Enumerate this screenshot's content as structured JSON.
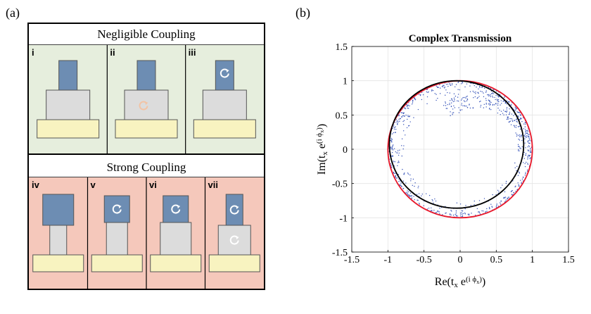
{
  "panel_a": {
    "label": "(a)",
    "top_section": {
      "title": "Negligible Coupling",
      "cells": [
        {
          "roman": "i",
          "pieces": [
            {
              "t": "top",
              "arrow": false
            },
            {
              "t": "mid",
              "arrow": false
            },
            {
              "t": "base"
            }
          ]
        },
        {
          "roman": "ii",
          "pieces": [
            {
              "t": "top",
              "arrow": false
            },
            {
              "t": "mid",
              "arrow": true
            },
            {
              "t": "base"
            }
          ]
        },
        {
          "roman": "iii",
          "pieces": [
            {
              "t": "top",
              "arrow": true
            },
            {
              "t": "mid",
              "arrow": false
            },
            {
              "t": "base"
            }
          ]
        }
      ]
    },
    "bottom_section": {
      "title": "Strong Coupling",
      "cells": [
        {
          "roman": "iv",
          "variant": "big-top-narrow",
          "top_arrow": false,
          "mid_arrow": false
        },
        {
          "roman": "v",
          "variant": "mid-top",
          "top_arrow": true,
          "mid_arrow": false
        },
        {
          "roman": "vi",
          "variant": "mid-top-wide",
          "top_arrow": true,
          "mid_arrow": false
        },
        {
          "roman": "vii",
          "variant": "small-top-wide",
          "top_arrow": true,
          "mid_arrow": true
        }
      ]
    },
    "colors": {
      "top_bg": "#e6eedd",
      "bottom_bg": "#f5c8bb",
      "block_top": "#6d8db3",
      "block_mid": "#dcdcdc",
      "block_base": "#f8f3c0",
      "arrow_top": "#ffffff",
      "arrow_mid": "#f3c3a4"
    }
  },
  "panel_b": {
    "label": "(b)",
    "chart_data": {
      "type": "scatter",
      "title": "Complex Transmission",
      "xlabel": "Re(t",
      "xlabel_sub": "x",
      "xlabel_mid": " e",
      "xlabel_sup": "(i ϕ",
      "xlabel_supsub": "x",
      "xlabel_end": ")",
      "ylabel": "Im(t",
      "xlim": [
        -1.5,
        1.5
      ],
      "ylim": [
        -1.5,
        1.5
      ],
      "xticks": [
        -1.5,
        -1,
        -0.5,
        0,
        0.5,
        1,
        1.5
      ],
      "yticks": [
        -1.5,
        -1,
        -0.5,
        0,
        0.5,
        1,
        1.5
      ],
      "xtick_labels": [
        "-1.5",
        "-1",
        "-0.5",
        "0",
        "0.5",
        "1",
        "1.5"
      ],
      "ytick_labels": [
        "-1.5",
        "-1",
        "-0.5",
        "0",
        "0.5",
        "1",
        "1.5"
      ],
      "grid": true,
      "circles": [
        {
          "cx": 0,
          "cy": 0,
          "r": 1.0,
          "color": "#e8192c"
        },
        {
          "cx": -0.05,
          "cy": 0.07,
          "r": 0.93,
          "color": "#000000"
        }
      ],
      "scatter_color": "#3552b8",
      "scatter_description_points": 900
    }
  }
}
